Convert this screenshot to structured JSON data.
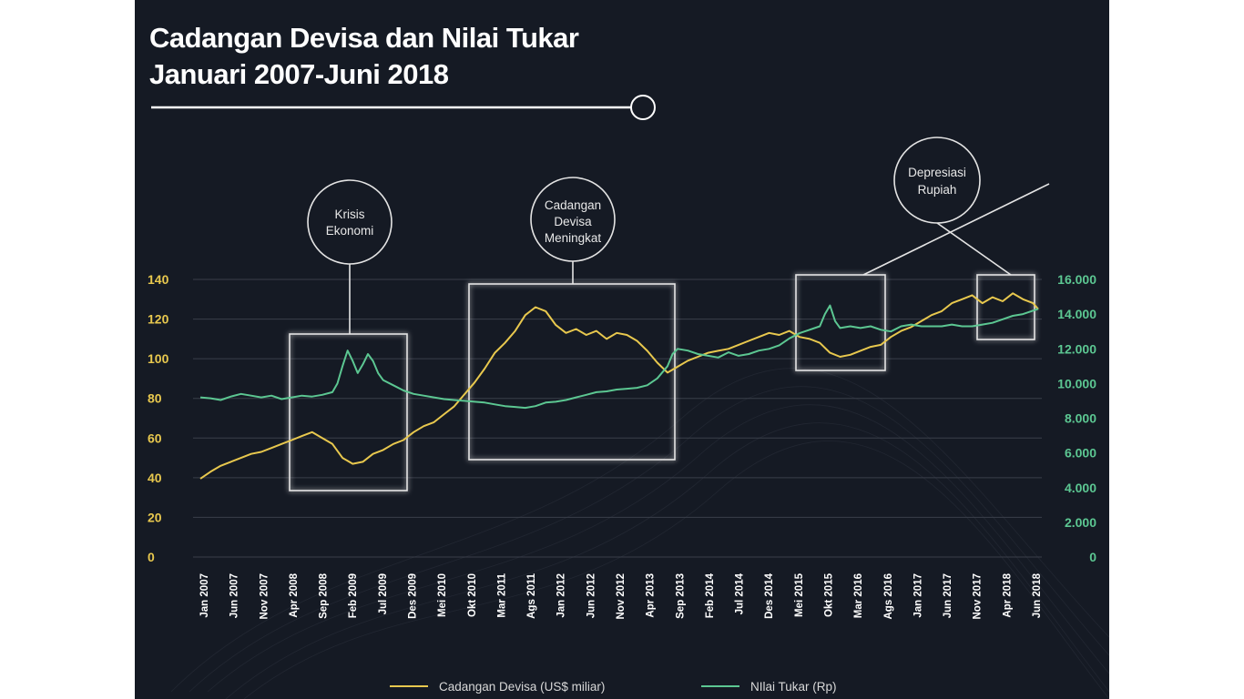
{
  "title_line1": "Cadangan Devisa dan Nilai Tukar",
  "title_line2": "Januari 2007-Juni 2018",
  "colors": {
    "background": "#151a24",
    "reserves": "#e8c84e",
    "exchange": "#5cc792",
    "box": "#e0e0e0",
    "grid": "#3a3f4a"
  },
  "annotations": [
    {
      "id": "krisis",
      "lines": [
        "Krisis",
        "Ekonomi"
      ]
    },
    {
      "id": "cadangan",
      "lines": [
        "Cadangan",
        "Devisa",
        "Meningkat"
      ]
    },
    {
      "id": "depresiasi",
      "lines": [
        "Depresiasi",
        "Rupiah"
      ]
    }
  ],
  "chart_data": {
    "type": "line",
    "x_tick_labels": [
      "Jan 2007",
      "Jun 2007",
      "Nov 2007",
      "Apr 2008",
      "Sep 2008",
      "Feb 2009",
      "Jul 2009",
      "Des 2009",
      "Mei 2010",
      "Okt 2010",
      "Mar 2011",
      "Ags 2011",
      "Jan 2012",
      "Jun 2012",
      "Nov 2012",
      "Apr 2013",
      "Sep 2013",
      "Feb 2014",
      "Jul 2014",
      "Des 2014",
      "Mei 2015",
      "Okt 2015",
      "Mar 2016",
      "Ags 2016",
      "Jan 2017",
      "Jun 2017",
      "Nov 2017",
      "Apr 2018",
      "Jun 2018"
    ],
    "y_left": {
      "min": 0,
      "max": 140,
      "ticks": [
        "0",
        "20",
        "40",
        "60",
        "80",
        "100",
        "120",
        "140"
      ]
    },
    "y_right": {
      "min": 0,
      "max": 16000,
      "ticks": [
        "0",
        "2.000",
        "4.000",
        "6.000",
        "8.000",
        "10.000",
        "12.000",
        "14.000",
        "16.000"
      ]
    },
    "grid": "horizontal",
    "legend_position": "bottom",
    "series": [
      {
        "name": "Cadangan Devisa (US$ miliar)",
        "axis": "left",
        "anchors": [
          [
            0,
            39.5
          ],
          [
            2,
            43
          ],
          [
            4,
            46
          ],
          [
            6,
            48
          ],
          [
            8,
            50
          ],
          [
            10,
            52
          ],
          [
            12,
            53
          ],
          [
            14,
            55
          ],
          [
            16,
            57
          ],
          [
            18,
            59
          ],
          [
            20,
            61
          ],
          [
            22,
            63
          ],
          [
            24,
            60
          ],
          [
            26,
            57
          ],
          [
            28,
            50
          ],
          [
            30,
            47
          ],
          [
            32,
            48
          ],
          [
            34,
            52
          ],
          [
            36,
            54
          ],
          [
            38,
            57
          ],
          [
            40,
            59
          ],
          [
            42,
            63
          ],
          [
            44,
            66
          ],
          [
            46,
            68
          ],
          [
            48,
            72
          ],
          [
            50,
            76
          ],
          [
            52,
            82
          ],
          [
            54,
            88
          ],
          [
            56,
            95
          ],
          [
            58,
            103
          ],
          [
            60,
            108
          ],
          [
            62,
            114
          ],
          [
            64,
            122
          ],
          [
            66,
            126
          ],
          [
            68,
            124
          ],
          [
            70,
            117
          ],
          [
            72,
            113
          ],
          [
            74,
            115
          ],
          [
            76,
            112
          ],
          [
            78,
            114
          ],
          [
            80,
            110
          ],
          [
            82,
            113
          ],
          [
            84,
            112
          ],
          [
            86,
            109
          ],
          [
            88,
            104
          ],
          [
            90,
            98
          ],
          [
            92,
            93
          ],
          [
            94,
            96
          ],
          [
            96,
            99
          ],
          [
            98,
            101
          ],
          [
            100,
            103
          ],
          [
            102,
            104
          ],
          [
            104,
            105
          ],
          [
            106,
            107
          ],
          [
            108,
            109
          ],
          [
            110,
            111
          ],
          [
            112,
            113
          ],
          [
            114,
            112
          ],
          [
            116,
            114
          ],
          [
            118,
            111
          ],
          [
            120,
            110
          ],
          [
            122,
            108
          ],
          [
            124,
            103
          ],
          [
            126,
            101
          ],
          [
            128,
            102
          ],
          [
            130,
            104
          ],
          [
            132,
            106
          ],
          [
            134,
            107
          ],
          [
            136,
            111
          ],
          [
            138,
            114
          ],
          [
            140,
            116
          ],
          [
            142,
            119
          ],
          [
            144,
            122
          ],
          [
            146,
            124
          ],
          [
            148,
            128
          ],
          [
            150,
            130
          ],
          [
            152,
            132
          ],
          [
            154,
            128
          ],
          [
            156,
            131
          ],
          [
            158,
            129
          ],
          [
            160,
            133
          ],
          [
            162,
            130
          ],
          [
            164,
            128
          ],
          [
            165,
            125
          ]
        ]
      },
      {
        "name": "NIlai Tukar (Rp)",
        "axis": "right",
        "anchors": [
          [
            0,
            9200
          ],
          [
            2,
            9150
          ],
          [
            4,
            9050
          ],
          [
            6,
            9250
          ],
          [
            8,
            9400
          ],
          [
            10,
            9300
          ],
          [
            12,
            9200
          ],
          [
            14,
            9300
          ],
          [
            16,
            9100
          ],
          [
            18,
            9200
          ],
          [
            20,
            9300
          ],
          [
            22,
            9250
          ],
          [
            24,
            9350
          ],
          [
            26,
            9500
          ],
          [
            27,
            10000
          ],
          [
            28,
            11000
          ],
          [
            29,
            11900
          ],
          [
            30,
            11300
          ],
          [
            31,
            10600
          ],
          [
            32,
            11100
          ],
          [
            33,
            11700
          ],
          [
            34,
            11300
          ],
          [
            35,
            10600
          ],
          [
            36,
            10200
          ],
          [
            38,
            9900
          ],
          [
            40,
            9600
          ],
          [
            42,
            9400
          ],
          [
            44,
            9300
          ],
          [
            46,
            9200
          ],
          [
            48,
            9100
          ],
          [
            50,
            9050
          ],
          [
            52,
            9000
          ],
          [
            54,
            8950
          ],
          [
            56,
            8900
          ],
          [
            58,
            8800
          ],
          [
            60,
            8700
          ],
          [
            62,
            8650
          ],
          [
            64,
            8600
          ],
          [
            66,
            8700
          ],
          [
            68,
            8900
          ],
          [
            70,
            8950
          ],
          [
            72,
            9050
          ],
          [
            74,
            9200
          ],
          [
            76,
            9350
          ],
          [
            78,
            9500
          ],
          [
            80,
            9550
          ],
          [
            82,
            9650
          ],
          [
            84,
            9700
          ],
          [
            86,
            9750
          ],
          [
            88,
            9900
          ],
          [
            90,
            10300
          ],
          [
            92,
            11000
          ],
          [
            93,
            11700
          ],
          [
            94,
            12000
          ],
          [
            96,
            11900
          ],
          [
            98,
            11700
          ],
          [
            100,
            11600
          ],
          [
            102,
            11500
          ],
          [
            104,
            11800
          ],
          [
            106,
            11600
          ],
          [
            108,
            11700
          ],
          [
            110,
            11900
          ],
          [
            112,
            12000
          ],
          [
            114,
            12200
          ],
          [
            116,
            12600
          ],
          [
            118,
            12900
          ],
          [
            120,
            13100
          ],
          [
            122,
            13300
          ],
          [
            123,
            14000
          ],
          [
            124,
            14500
          ],
          [
            125,
            13600
          ],
          [
            126,
            13200
          ],
          [
            128,
            13300
          ],
          [
            130,
            13200
          ],
          [
            132,
            13300
          ],
          [
            134,
            13100
          ],
          [
            136,
            13000
          ],
          [
            138,
            13300
          ],
          [
            140,
            13400
          ],
          [
            142,
            13300
          ],
          [
            144,
            13300
          ],
          [
            146,
            13300
          ],
          [
            148,
            13400
          ],
          [
            150,
            13300
          ],
          [
            152,
            13300
          ],
          [
            154,
            13400
          ],
          [
            156,
            13500
          ],
          [
            158,
            13700
          ],
          [
            160,
            13900
          ],
          [
            162,
            14000
          ],
          [
            164,
            14200
          ],
          [
            165,
            14300
          ]
        ]
      }
    ]
  }
}
